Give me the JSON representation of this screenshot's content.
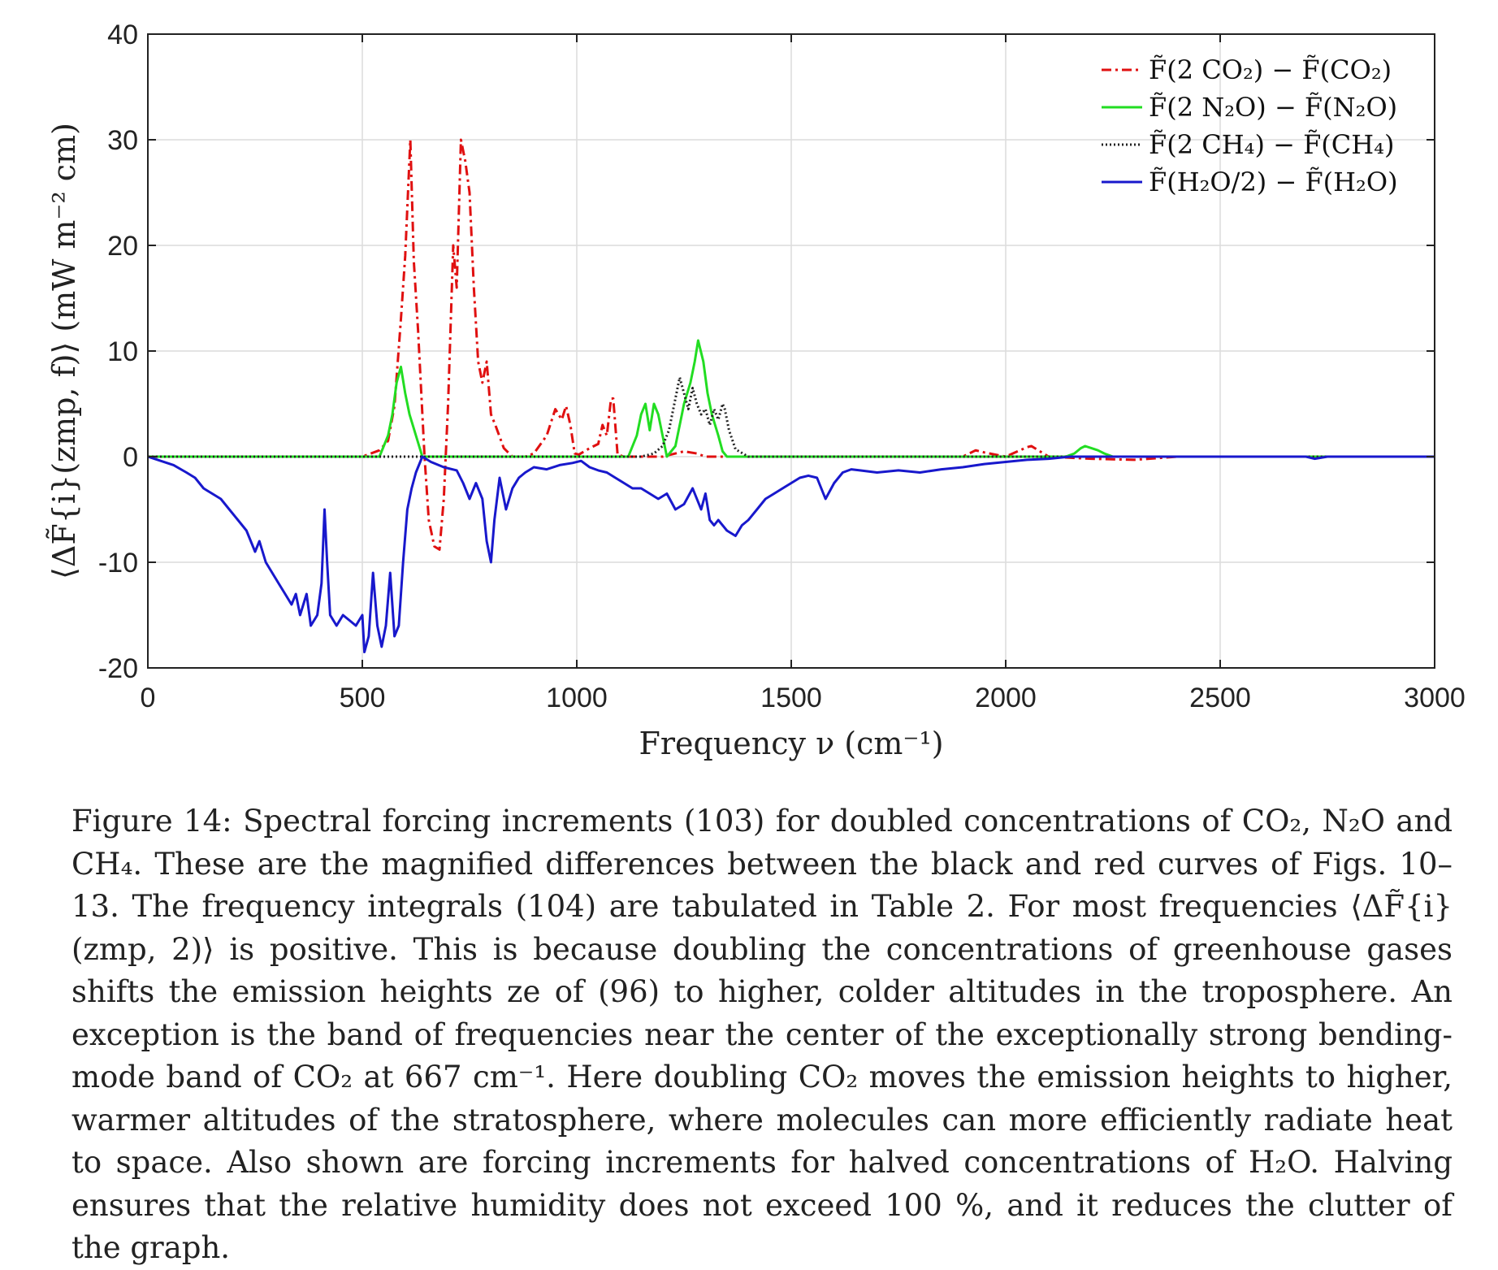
{
  "chart_data": {
    "type": "line",
    "xlabel": "Frequency ν (cm⁻¹)",
    "ylabel": "⟨ΔF̃{i}(zmp, f)⟩  (mW m⁻² cm)",
    "xlim": [
      0,
      3000
    ],
    "ylim": [
      -20,
      40
    ],
    "x_ticks": [
      "0",
      "500",
      "1000",
      "1500",
      "2000",
      "2500",
      "3000"
    ],
    "y_ticks": [
      "-20",
      "-10",
      "0",
      "10",
      "20",
      "30",
      "40"
    ],
    "grid": true,
    "legend_position": "top-right",
    "series": [
      {
        "name": "F̃(2 CO₂) − F̃(CO₂)",
        "color": "#e01010",
        "style": "dashdot",
        "x": [
          0,
          500,
          540,
          560,
          575,
          590,
          600,
          612,
          620,
          630,
          645,
          655,
          668,
          680,
          690,
          700,
          712,
          720,
          730,
          740,
          750,
          760,
          770,
          780,
          790,
          800,
          810,
          830,
          850,
          880,
          900,
          930,
          950,
          965,
          975,
          985,
          995,
          1005,
          1030,
          1050,
          1060,
          1070,
          1080,
          1085,
          1095,
          1110,
          1200,
          1250,
          1280,
          1300,
          1900,
          1930,
          1950,
          2000,
          2050,
          2060,
          2080,
          2100,
          2200,
          2300,
          2400,
          3000
        ],
        "values": [
          0,
          0,
          0.6,
          1.5,
          4.8,
          13,
          19,
          30,
          18.5,
          12,
          0,
          -6,
          -8.5,
          -8.8,
          -4,
          5,
          20,
          16,
          30,
          28,
          25,
          16,
          9,
          7,
          9,
          4,
          3,
          0.8,
          0,
          0,
          0.3,
          2,
          4.5,
          3.5,
          4.8,
          3,
          0.3,
          0.2,
          0.8,
          1.2,
          3,
          2,
          5.5,
          5.5,
          0.2,
          0,
          0,
          0.5,
          0.3,
          0,
          0,
          0.6,
          0.4,
          0,
          0.9,
          1,
          0.5,
          0,
          -0.2,
          -0.3,
          0,
          0
        ]
      },
      {
        "name": "F̃(2 N₂O) − F̃(N₂O)",
        "color": "#22dd22",
        "style": "solid",
        "x": [
          0,
          540,
          560,
          570,
          580,
          590,
          600,
          610,
          625,
          640,
          1120,
          1140,
          1150,
          1160,
          1170,
          1180,
          1190,
          1200,
          1210,
          1230,
          1245,
          1250,
          1265,
          1275,
          1283,
          1295,
          1305,
          1315,
          1330,
          1340,
          1350,
          2140,
          2160,
          2175,
          2185,
          2200,
          2215,
          2230,
          2250,
          3000
        ],
        "values": [
          0,
          0,
          2,
          4,
          7,
          8.5,
          6,
          4,
          2,
          0,
          0,
          2,
          4,
          5,
          2.5,
          5,
          4,
          2,
          0,
          1,
          4,
          5,
          7,
          9,
          11,
          9,
          6,
          4,
          2,
          0.5,
          0,
          0,
          0.3,
          0.8,
          1,
          0.8,
          0.6,
          0.3,
          0,
          0
        ]
      },
      {
        "name": "F̃(2 CH₄) − F̃(CH₄)",
        "color": "#222222",
        "style": "dotted",
        "x": [
          0,
          1150,
          1180,
          1200,
          1215,
          1230,
          1240,
          1250,
          1260,
          1270,
          1280,
          1290,
          1300,
          1310,
          1320,
          1330,
          1340,
          1345,
          1355,
          1370,
          1400,
          3000
        ],
        "values": [
          0,
          0,
          0.3,
          1,
          2.5,
          5.5,
          7.5,
          6,
          4.5,
          6.5,
          5,
          4,
          4.5,
          3,
          4.5,
          3.5,
          5,
          4.5,
          2.5,
          0.7,
          0,
          0
        ]
      },
      {
        "name": "F̃(H₂O/2) − F̃(H₂O)",
        "color": "#1818cc",
        "style": "solid",
        "x": [
          0,
          30,
          60,
          90,
          110,
          130,
          150,
          170,
          190,
          210,
          230,
          250,
          260,
          275,
          290,
          305,
          320,
          335,
          345,
          355,
          370,
          380,
          395,
          405,
          412,
          418,
          425,
          440,
          455,
          470,
          485,
          500,
          505,
          515,
          525,
          535,
          545,
          555,
          565,
          575,
          585,
          595,
          605,
          615,
          625,
          640,
          660,
          690,
          720,
          735,
          750,
          765,
          780,
          790,
          800,
          808,
          820,
          835,
          850,
          865,
          880,
          900,
          930,
          960,
          990,
          1010,
          1030,
          1050,
          1070,
          1090,
          1110,
          1130,
          1150,
          1170,
          1190,
          1210,
          1230,
          1250,
          1270,
          1290,
          1300,
          1310,
          1320,
          1330,
          1350,
          1370,
          1385,
          1400,
          1420,
          1440,
          1460,
          1480,
          1500,
          1520,
          1540,
          1560,
          1580,
          1600,
          1620,
          1640,
          1660,
          1700,
          1750,
          1800,
          1850,
          1900,
          1950,
          2000,
          2050,
          2100,
          2150,
          2200,
          2300,
          2400,
          2500,
          2600,
          2700,
          2720,
          2750,
          3000
        ],
        "values": [
          0,
          -0.4,
          -0.8,
          -1.5,
          -2,
          -3,
          -3.5,
          -4,
          -5,
          -6,
          -7,
          -9,
          -8,
          -10,
          -11,
          -12,
          -13,
          -14,
          -13,
          -15,
          -13,
          -16,
          -15,
          -12,
          -5,
          -10,
          -15,
          -16,
          -15,
          -15.5,
          -16,
          -15,
          -18.5,
          -17,
          -11,
          -16,
          -18,
          -16,
          -11,
          -17,
          -16,
          -10,
          -5,
          -3,
          -1.5,
          0,
          -0.5,
          -1,
          -1.3,
          -2.5,
          -4,
          -2.5,
          -4,
          -8,
          -10,
          -6,
          -2,
          -5,
          -3,
          -2,
          -1.5,
          -1,
          -1.2,
          -0.8,
          -0.6,
          -0.4,
          -1,
          -1.3,
          -1.5,
          -2,
          -2.5,
          -3,
          -3,
          -3.5,
          -4,
          -3.5,
          -5,
          -4.5,
          -3,
          -5,
          -3.5,
          -6,
          -6.5,
          -6,
          -7,
          -7.5,
          -6.5,
          -6,
          -5,
          -4,
          -3.5,
          -3,
          -2.5,
          -2,
          -1.8,
          -2,
          -4,
          -2.5,
          -1.5,
          -1.2,
          -1.3,
          -1.5,
          -1.3,
          -1.5,
          -1.2,
          -1,
          -0.7,
          -0.5,
          -0.3,
          -0.2,
          0,
          0,
          0,
          0,
          0,
          0,
          0,
          -0.2,
          0,
          0
        ]
      }
    ]
  },
  "caption": {
    "label": "Figure 14:",
    "text": "Spectral forcing increments (103) for doubled concentrations of CO₂, N₂O and CH₄. These are the magnified differences between the black and red curves of Figs. 10–13. The frequency integrals (104) are tabulated in Table 2. For most frequencies ⟨ΔF̃{i}(zmp, 2)⟩ is positive. This is because doubling the concentrations of greenhouse gases shifts the emission heights ze of (96) to higher, colder altitudes in the troposphere. An exception is the band of frequencies near the center of the exceptionally strong bending-mode band of CO₂ at 667 cm⁻¹. Here doubling CO₂ moves the emission heights to higher, warmer altitudes of the stratosphere, where molecules can more efficiently radiate heat to space. Also shown are forcing increments for halved concentrations of H₂O. Halving ensures that the relative humidity does not exceed 100 %, and it reduces the clutter of the graph."
  }
}
